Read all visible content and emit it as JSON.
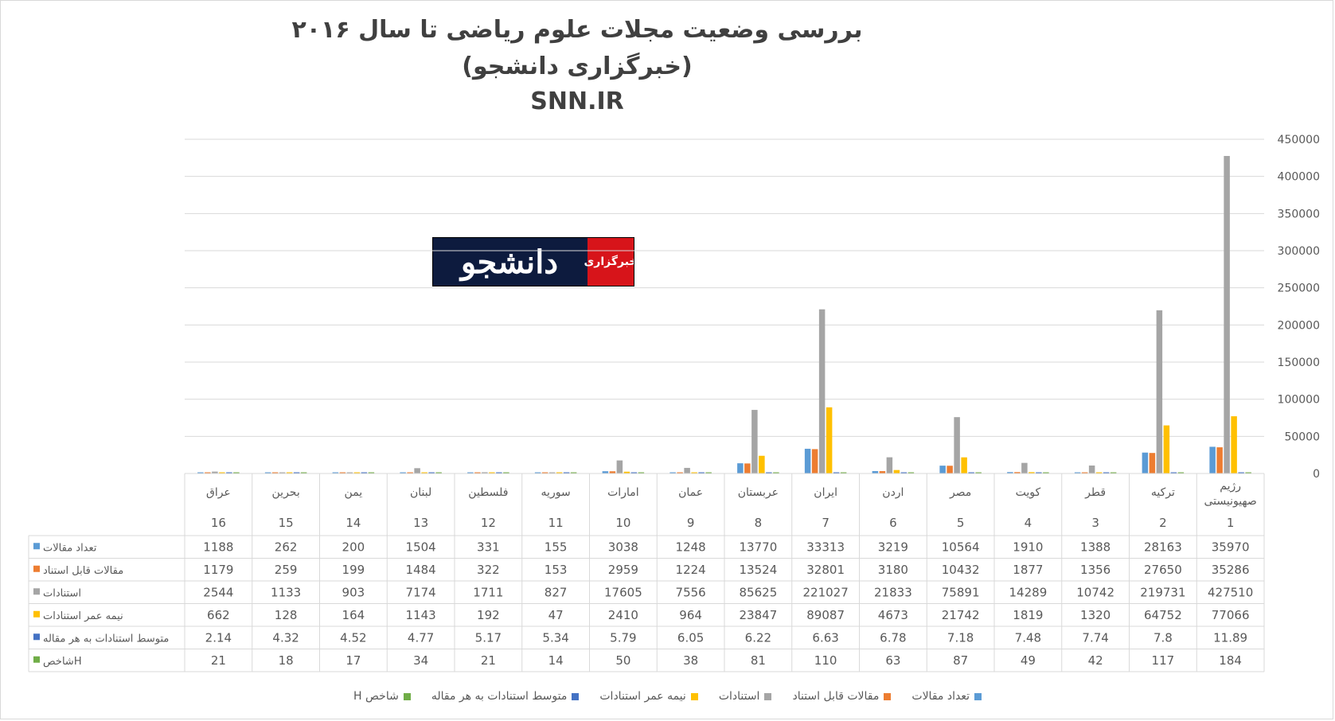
{
  "title": {
    "line1": "بررسی وضعیت مجلات علوم ریاضی تا سال ۲۰۱۶",
    "line2": "(خبرگزاری دانشجو)",
    "line3": "SNN.IR"
  },
  "logo": {
    "text": "دانشجو",
    "badge": "خبرگزاری"
  },
  "colors": {
    "series": [
      "#5b9bd5",
      "#ed7d31",
      "#a5a5a5",
      "#ffc000",
      "#4472c4",
      "#70ad47"
    ],
    "grid": "#d9d9d9",
    "axis_text": "#595959"
  },
  "chart_data": {
    "type": "bar",
    "categories": [
      {
        "name": "رژیم صهیونیستی",
        "rank": "1"
      },
      {
        "name": "ترکیه",
        "rank": "2"
      },
      {
        "name": "قطر",
        "rank": "3"
      },
      {
        "name": "کویت",
        "rank": "4"
      },
      {
        "name": "مصر",
        "rank": "5"
      },
      {
        "name": "اردن",
        "rank": "6"
      },
      {
        "name": "ایران",
        "rank": "7"
      },
      {
        "name": "عربستان",
        "rank": "8"
      },
      {
        "name": "عمان",
        "rank": "9"
      },
      {
        "name": "امارات",
        "rank": "10"
      },
      {
        "name": "سوریه",
        "rank": "11"
      },
      {
        "name": "فلسطین",
        "rank": "12"
      },
      {
        "name": "لبنان",
        "rank": "13"
      },
      {
        "name": "یمن",
        "rank": "14"
      },
      {
        "name": "بحرین",
        "rank": "15"
      },
      {
        "name": "عراق",
        "rank": "16"
      }
    ],
    "series": [
      {
        "name": "تعداد مقالات",
        "table_label": "تعداد مقالات",
        "values": [
          "35970",
          "28163",
          "1388",
          "1910",
          "10564",
          "3219",
          "33313",
          "13770",
          "1248",
          "3038",
          "155",
          "331",
          "1504",
          "200",
          "262",
          "1188"
        ]
      },
      {
        "name": "مقالات قابل استناد",
        "table_label": "مقالات قابل استناد",
        "values": [
          "35286",
          "27650",
          "1356",
          "1877",
          "10432",
          "3180",
          "32801",
          "13524",
          "1224",
          "2959",
          "153",
          "322",
          "1484",
          "199",
          "259",
          "1179"
        ]
      },
      {
        "name": "استنادات",
        "table_label": "استنادات",
        "values": [
          "427510",
          "219731",
          "10742",
          "14289",
          "75891",
          "21833",
          "221027",
          "85625",
          "7556",
          "17605",
          "827",
          "1711",
          "7174",
          "903",
          "1133",
          "2544"
        ]
      },
      {
        "name": "نیمه عمر استنادات",
        "table_label": "نیمه عمر استنادات",
        "values": [
          "77066",
          "64752",
          "1320",
          "1819",
          "21742",
          "4673",
          "89087",
          "23847",
          "964",
          "2410",
          "47",
          "192",
          "1143",
          "164",
          "128",
          "662"
        ]
      },
      {
        "name": "متوسط استنادات به هر مقاله",
        "table_label": "متوسط استنادات به هر مقاله",
        "values": [
          "11.89",
          "7.8",
          "7.74",
          "7.48",
          "7.18",
          "6.78",
          "6.63",
          "6.22",
          "6.05",
          "5.79",
          "5.34",
          "5.17",
          "4.77",
          "4.52",
          "4.32",
          "2.14"
        ]
      },
      {
        "name": "شاخص H",
        "table_label": "شاخصH",
        "values": [
          "184",
          "117",
          "42",
          "49",
          "87",
          "63",
          "110",
          "81",
          "38",
          "50",
          "14",
          "21",
          "34",
          "17",
          "18",
          "21"
        ]
      }
    ],
    "y_ticks": [
      "0",
      "50000",
      "100000",
      "150000",
      "200000",
      "250000",
      "300000",
      "350000",
      "400000",
      "450000"
    ],
    "ylim": [
      0,
      450000
    ],
    "grid": true,
    "legend_position": "bottom"
  }
}
